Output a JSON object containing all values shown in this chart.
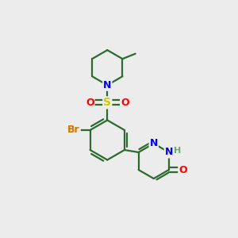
{
  "bg_color": "#ececec",
  "bond_color": "#2d6b2d",
  "bond_width": 1.6,
  "atom_colors": {
    "N": "#0000ff",
    "O": "#ff0000",
    "S": "#cccc00",
    "Br": "#cc7700",
    "H": "#6aaa6a",
    "C": "#2d6b2d"
  },
  "font_size": 9
}
